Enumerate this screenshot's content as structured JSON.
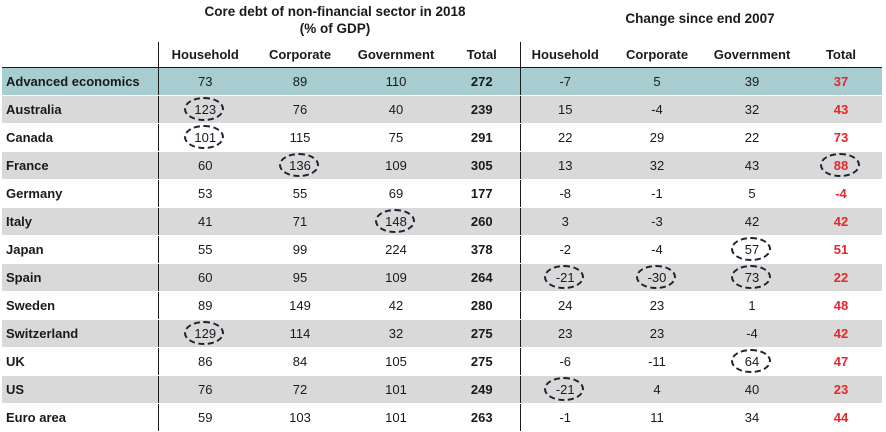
{
  "titles": {
    "left": "Core debt of non-financial sector in 2018\n(% of GDP)",
    "right": "Change since end 2007"
  },
  "headers": [
    "Household",
    "Corporate",
    "Government",
    "Total",
    "Household",
    "Corporate",
    "Government",
    "Total"
  ],
  "rows": [
    {
      "country": "Advanced economics",
      "style": "teal",
      "values": [
        "73",
        "89",
        "110",
        "272",
        "-7",
        "5",
        "39",
        "37"
      ],
      "circled": []
    },
    {
      "country": "Australia",
      "style": "gray",
      "values": [
        "123",
        "76",
        "40",
        "239",
        "15",
        "-4",
        "32",
        "43"
      ],
      "circled": [
        0
      ]
    },
    {
      "country": "Canada",
      "style": "white",
      "values": [
        "101",
        "115",
        "75",
        "291",
        "22",
        "29",
        "22",
        "73"
      ],
      "circled": [
        0
      ]
    },
    {
      "country": "France",
      "style": "gray",
      "values": [
        "60",
        "136",
        "109",
        "305",
        "13",
        "32",
        "43",
        "88"
      ],
      "circled": [
        1,
        7
      ]
    },
    {
      "country": "Germany",
      "style": "white",
      "values": [
        "53",
        "55",
        "69",
        "177",
        "-8",
        "-1",
        "5",
        "-4"
      ],
      "circled": []
    },
    {
      "country": "Italy",
      "style": "gray",
      "values": [
        "41",
        "71",
        "148",
        "260",
        "3",
        "-3",
        "42",
        "42"
      ],
      "circled": [
        2
      ]
    },
    {
      "country": "Japan",
      "style": "white",
      "values": [
        "55",
        "99",
        "224",
        "378",
        "-2",
        "-4",
        "57",
        "51"
      ],
      "circled": [
        6
      ]
    },
    {
      "country": "Spain",
      "style": "gray",
      "values": [
        "60",
        "95",
        "109",
        "264",
        "-21",
        "-30",
        "73",
        "22"
      ],
      "circled": [
        4,
        5,
        6
      ]
    },
    {
      "country": "Sweden",
      "style": "white",
      "values": [
        "89",
        "149",
        "42",
        "280",
        "24",
        "23",
        "1",
        "48"
      ],
      "circled": []
    },
    {
      "country": "Switzerland",
      "style": "gray",
      "values": [
        "129",
        "114",
        "32",
        "275",
        "23",
        "23",
        "-4",
        "42"
      ],
      "circled": [
        0
      ]
    },
    {
      "country": "UK",
      "style": "white",
      "values": [
        "86",
        "84",
        "105",
        "275",
        "-6",
        "-11",
        "64",
        "47"
      ],
      "circled": [
        6
      ]
    },
    {
      "country": "US",
      "style": "gray",
      "values": [
        "76",
        "72",
        "101",
        "249",
        "-21",
        "4",
        "40",
        "23"
      ],
      "circled": [
        4
      ]
    },
    {
      "country": "Euro area",
      "style": "white",
      "values": [
        "59",
        "103",
        "101",
        "263",
        "-1",
        "11",
        "34",
        "44"
      ],
      "circled": []
    }
  ],
  "colors": {
    "teal_row": "#a8cdd0",
    "gray_row": "#d9d9d9",
    "red_total": "#e8262b",
    "circle": "#1c2233"
  }
}
